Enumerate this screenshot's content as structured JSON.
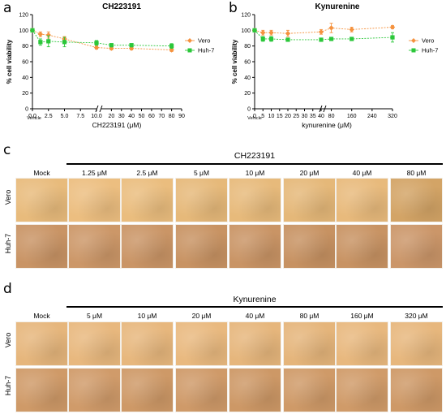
{
  "panel_labels": [
    "a",
    "b",
    "c",
    "d"
  ],
  "chart_data": [
    {
      "type": "line",
      "title": "CH223191",
      "xlabel": "CH223191 (μM)",
      "ylabel": "% cell viability",
      "x_tick_labels": [
        "0.0",
        "2.5",
        "5.0",
        "7.5",
        "10.0",
        "20",
        "30",
        "40",
        "50",
        "60",
        "70",
        "80",
        "90"
      ],
      "x_sub_label": "Vehicle",
      "ylim": [
        0,
        120
      ],
      "y_ticks": [
        0,
        20,
        40,
        60,
        80,
        100,
        120
      ],
      "axis_break": true,
      "legend_position": "right",
      "series": [
        {
          "name": "Vero",
          "color": "#f5923e",
          "marker": "diamond",
          "x": [
            0,
            1.25,
            2.5,
            5,
            10,
            20,
            40,
            80
          ],
          "y": [
            100,
            95,
            94,
            89,
            78,
            77,
            77,
            75
          ],
          "err": [
            2,
            3,
            4,
            3,
            2,
            2,
            2,
            2
          ]
        },
        {
          "name": "Huh-7",
          "color": "#2bc73a",
          "marker": "square",
          "x": [
            0,
            1.25,
            2.5,
            5,
            10,
            20,
            40,
            80
          ],
          "y": [
            100,
            85,
            86,
            85,
            84,
            81,
            81,
            80
          ],
          "err": [
            2,
            4,
            7,
            6,
            3,
            2,
            2,
            3
          ]
        }
      ]
    },
    {
      "type": "line",
      "title": "Kynurenine",
      "xlabel": "kynurenine (μM)",
      "ylabel": "% cell viability",
      "x_tick_labels": [
        "0",
        "5",
        "10",
        "15",
        "20",
        "25",
        "30",
        "35",
        "40",
        "80",
        "160",
        "240",
        "320"
      ],
      "x_sub_label": "Vehicle",
      "ylim": [
        0,
        120
      ],
      "y_ticks": [
        0,
        20,
        40,
        60,
        80,
        100,
        120
      ],
      "axis_break": true,
      "legend_position": "right",
      "series": [
        {
          "name": "Vero",
          "color": "#f5923e",
          "marker": "diamond",
          "x": [
            0,
            5,
            10,
            20,
            40,
            80,
            160,
            320
          ],
          "y": [
            100,
            97,
            97,
            96,
            98,
            103,
            101,
            104
          ],
          "err": [
            2,
            3,
            3,
            4,
            3,
            6,
            3,
            2
          ]
        },
        {
          "name": "Huh-7",
          "color": "#2bc73a",
          "marker": "square",
          "x": [
            0,
            5,
            10,
            20,
            40,
            80,
            160,
            320
          ],
          "y": [
            100,
            89,
            89,
            88,
            88,
            89,
            89,
            91
          ],
          "err": [
            2,
            3,
            3,
            2,
            2,
            2,
            2,
            6
          ]
        }
      ]
    }
  ],
  "micrographs_c": {
    "group_title": "CH223191",
    "mock_label": "Mock",
    "columns": [
      "1.25 μM",
      "2.5 μM",
      "5 μM",
      "10 μM",
      "20 μM",
      "40 μM",
      "80 μM"
    ],
    "rows": [
      "Vero",
      "Huh-7"
    ],
    "colors": [
      [
        "#e8bb7c",
        "#ecbe80",
        "#eabd7e",
        "#e6b97a",
        "#e7ba7b",
        "#e5b879",
        "#e8ba7c",
        "#d3a466"
      ],
      [
        "#c99465",
        "#cc9768",
        "#ca9566",
        "#c89363",
        "#c99465",
        "#c79262",
        "#c89363",
        "#cb9669"
      ]
    ]
  },
  "micrographs_d": {
    "group_title": "Kynurenine",
    "mock_label": "Mock",
    "columns": [
      "5 μM",
      "10 μM",
      "20 μM",
      "40 μM",
      "80 μM",
      "160 μM",
      "320 μM"
    ],
    "rows": [
      "Vero",
      "Huh-7"
    ],
    "colors": [
      [
        "#e6b67c",
        "#e8b87e",
        "#e7b77d",
        "#e9b97f",
        "#e6b67c",
        "#e5b57b",
        "#e8b87e",
        "#e7b77d"
      ],
      [
        "#cf9a68",
        "#d09b6a",
        "#ce9967",
        "#cf9a69",
        "#cd9866",
        "#cf9a68",
        "#d09b69",
        "#ce9967"
      ]
    ]
  }
}
